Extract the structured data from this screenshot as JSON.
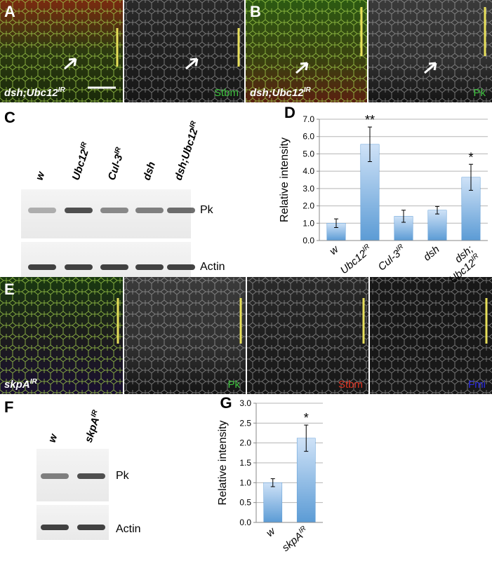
{
  "figure": {
    "panel_a": {
      "letter": "A",
      "genotype": {
        "text": "dsh;Ubc12",
        "sup": "IR"
      },
      "stain": "Stbm"
    },
    "panel_b": {
      "letter": "B",
      "genotype": {
        "text": "dsh;Ubc12",
        "sup": "IR"
      },
      "stain": "Pk"
    },
    "panel_c": {
      "letter": "C",
      "lanes": [
        {
          "text": "w"
        },
        {
          "text": "Ubc12",
          "sup": "IR"
        },
        {
          "text": "Cul-3",
          "sup": "IR"
        },
        {
          "text": "dsh"
        },
        {
          "text": "dsh;Ubc12",
          "sup": "IR"
        }
      ],
      "bands": [
        "Pk",
        "Actin"
      ]
    },
    "panel_e": {
      "letter": "E",
      "genotype": {
        "text": "skpA",
        "sup": "IR"
      },
      "stains": [
        "Pk",
        "Stbm",
        "Fmi"
      ]
    },
    "panel_f": {
      "letter": "F",
      "lanes": [
        {
          "text": "w"
        },
        {
          "text": "skpA",
          "sup": "IR"
        }
      ],
      "bands": [
        "Pk",
        "Actin"
      ]
    }
  },
  "chart_data": [
    {
      "type": "bar",
      "panel_letter": "D",
      "y_label": "Relative intensity",
      "categories": [
        {
          "text": "w"
        },
        {
          "text": "Ubc12",
          "sup": "IR"
        },
        {
          "text": "Cul-3",
          "sup": "IR"
        },
        {
          "text": "dsh"
        },
        {
          "text": "dsh;",
          "line2": "Ubc12",
          "sup": "IR"
        }
      ],
      "values": [
        1.0,
        5.55,
        1.4,
        1.75,
        3.65
      ],
      "errors": [
        0.25,
        1.0,
        0.35,
        0.22,
        0.75
      ],
      "significance": [
        null,
        "**",
        null,
        null,
        "*"
      ],
      "color": "#5b9bd5",
      "ylim": [
        0,
        7
      ],
      "yticks": [
        {
          "value": 0,
          "label": "0.0"
        },
        {
          "value": 1,
          "label": "1.0"
        },
        {
          "value": 2,
          "label": "2.0"
        },
        {
          "value": 3,
          "label": "3.0"
        },
        {
          "value": 4,
          "label": "4.0"
        },
        {
          "value": 5,
          "label": "5.0"
        },
        {
          "value": 6,
          "label": "6.0"
        },
        {
          "value": 7,
          "label": "7.0"
        }
      ],
      "grid": true
    },
    {
      "type": "bar",
      "panel_letter": "G",
      "y_label": "Relative intensity",
      "categories": [
        {
          "text": "w"
        },
        {
          "text": "skpA",
          "sup": "IR"
        }
      ],
      "values": [
        1.0,
        2.12
      ],
      "errors": [
        0.1,
        0.33
      ],
      "significance": [
        null,
        "*"
      ],
      "color": "#5b9bd5",
      "ylim": [
        0,
        3
      ],
      "yticks": [
        {
          "value": 0,
          "label": "0.0"
        },
        {
          "value": 0.5,
          "label": "0.5"
        },
        {
          "value": 1,
          "label": "1.0"
        },
        {
          "value": 1.5,
          "label": "1.5"
        },
        {
          "value": 2,
          "label": "2.0"
        },
        {
          "value": 2.5,
          "label": "2.5"
        },
        {
          "value": 3,
          "label": "3.0"
        }
      ],
      "grid": true
    }
  ]
}
